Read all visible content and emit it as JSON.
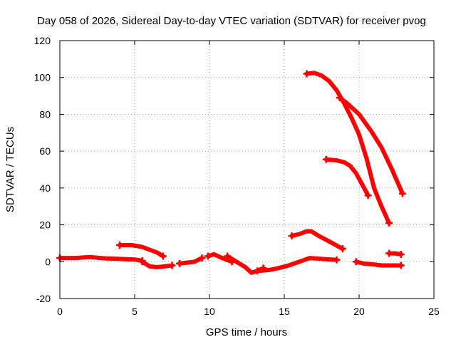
{
  "chart_data": {
    "type": "line",
    "title": "Day 058 of 2026, Sidereal Day-to-day VTEC variation (SDTVAR) for receiver pvog",
    "xlabel": "GPS time / hours",
    "ylabel": "SDTVAR / TECUs",
    "xlim": [
      0,
      25
    ],
    "ylim": [
      -20,
      120
    ],
    "xticks": [
      0,
      5,
      10,
      15,
      20,
      25
    ],
    "yticks": [
      -20,
      0,
      20,
      40,
      60,
      80,
      100,
      120
    ],
    "grid": true,
    "color": "#ff0000",
    "series": [
      {
        "name": "baseline-a",
        "x": [
          0,
          1,
          2,
          3,
          4,
          5,
          5.5
        ],
        "y": [
          2,
          2,
          2.5,
          1.8,
          1.5,
          1.2,
          0.5
        ]
      },
      {
        "name": "dip-a",
        "x": [
          5.5,
          6,
          6.5,
          7,
          7.5
        ],
        "y": [
          0,
          -2.5,
          -3,
          -2.5,
          -2
        ]
      },
      {
        "name": "rise-a",
        "x": [
          8,
          8.5,
          9,
          9.5
        ],
        "y": [
          -1,
          -0.5,
          0,
          2
        ]
      },
      {
        "name": "bump-a",
        "x": [
          9.9,
          10.3,
          10.7,
          11,
          11.5
        ],
        "y": [
          3,
          4,
          2.5,
          1.5,
          0
        ]
      },
      {
        "name": "dip-b",
        "x": [
          11.2,
          11.6,
          12,
          12.4,
          12.8,
          13.2,
          13.6
        ],
        "y": [
          3,
          1,
          -1,
          -3,
          -6,
          -5,
          -3.5
        ]
      },
      {
        "name": "rise-b",
        "x": [
          13.2,
          14,
          14.6,
          15.3,
          16,
          16.7,
          17.5,
          18.5
        ],
        "y": [
          -5,
          -4.5,
          -3.5,
          -2,
          0,
          2,
          1.5,
          1
        ]
      },
      {
        "name": "arc-low",
        "x": [
          4,
          4.8,
          5.5,
          6,
          6.5,
          6.9
        ],
        "y": [
          9,
          9,
          8,
          6.5,
          5,
          3
        ]
      },
      {
        "name": "arc-mid",
        "x": [
          15.5,
          16,
          16.5,
          16.8,
          17.3,
          18,
          18.9
        ],
        "y": [
          14,
          15,
          16.5,
          16.5,
          14,
          11,
          7
        ]
      },
      {
        "name": "high-a",
        "x": [
          16.5,
          17,
          17.5,
          18,
          18.5,
          19,
          19.5,
          20,
          20.5,
          21,
          21.5,
          22
        ],
        "y": [
          102,
          102.5,
          101,
          98,
          93,
          86,
          78,
          69,
          56,
          40,
          30,
          21
        ]
      },
      {
        "name": "high-b",
        "x": [
          18.7,
          19.2,
          20,
          20.8,
          21.5,
          22.2,
          22.9
        ],
        "y": [
          89,
          86,
          80,
          71,
          62,
          50,
          37
        ]
      },
      {
        "name": "high-c",
        "x": [
          17.8,
          18.5,
          19,
          19.4,
          19.8,
          20.2,
          20.6
        ],
        "y": [
          55.5,
          55,
          54,
          52,
          48,
          42,
          36
        ]
      },
      {
        "name": "tail-low",
        "x": [
          19.8,
          20.3,
          21,
          21.5,
          22,
          22.8
        ],
        "y": [
          0,
          -1,
          -1.5,
          -2,
          -2,
          -2
        ]
      },
      {
        "name": "tail-mid",
        "x": [
          22,
          22.4,
          22.8
        ],
        "y": [
          4.5,
          4.5,
          4
        ]
      }
    ]
  }
}
